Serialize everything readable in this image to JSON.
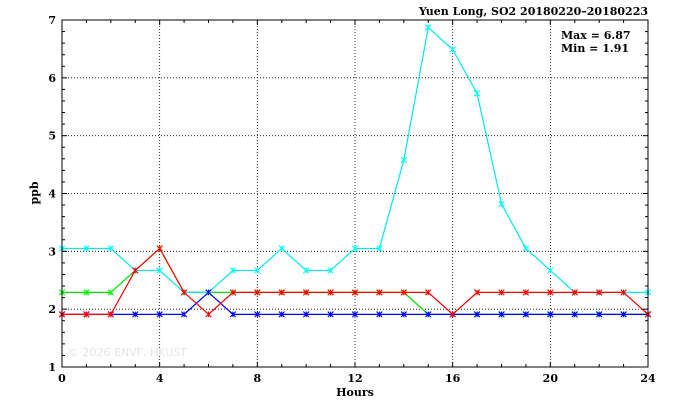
{
  "chart_data": {
    "type": "line",
    "title": "Yuen Long, SO2 20180220–20180223",
    "xlabel": "Hours",
    "ylabel": "ppb",
    "xlim": [
      0,
      24
    ],
    "ylim": [
      1,
      7
    ],
    "xticks": [
      0,
      4,
      8,
      12,
      16,
      20,
      24
    ],
    "yticks": [
      1,
      2,
      3,
      4,
      5,
      6,
      7
    ],
    "grid": true,
    "stats": {
      "max": "Max = 6.87",
      "min": "Min = 1.91"
    },
    "watermark": "© 2026  ENVF, HKUST",
    "x": [
      0,
      1,
      2,
      3,
      4,
      5,
      6,
      7,
      8,
      9,
      10,
      11,
      12,
      13,
      14,
      15,
      16,
      17,
      18,
      19,
      20,
      21,
      22,
      23,
      24
    ],
    "series": [
      {
        "color": "#00e000",
        "marker_color": "#00ff00",
        "values": [
          2.29,
          2.29,
          2.29,
          2.67,
          3.05,
          2.29,
          2.29,
          2.29,
          2.29,
          2.29,
          2.29,
          2.29,
          2.29,
          2.29,
          2.29,
          1.91,
          1.91,
          1.91,
          1.91,
          1.91,
          1.91,
          1.91,
          1.91,
          1.91,
          1.91
        ]
      },
      {
        "color": "#00e8e8",
        "marker_color": "#00ffff",
        "values": [
          3.05,
          3.05,
          3.05,
          2.67,
          2.67,
          2.29,
          2.29,
          2.67,
          2.67,
          3.05,
          2.67,
          2.67,
          3.05,
          3.05,
          4.58,
          6.87,
          6.49,
          5.73,
          3.82,
          3.05,
          2.67,
          2.29,
          2.29,
          2.29,
          2.29
        ]
      },
      {
        "color": "#0000ff",
        "marker_color": "#0000ff",
        "values": [
          1.91,
          1.91,
          1.91,
          1.91,
          1.91,
          1.91,
          2.29,
          1.91,
          1.91,
          1.91,
          1.91,
          1.91,
          1.91,
          1.91,
          1.91,
          1.91,
          1.91,
          1.91,
          1.91,
          1.91,
          1.91,
          1.91,
          1.91,
          1.91,
          1.91
        ]
      },
      {
        "color": "#ff0000",
        "marker_color": "#ff0000",
        "values": [
          1.91,
          1.91,
          1.91,
          2.67,
          3.05,
          2.29,
          1.91,
          2.29,
          2.29,
          2.29,
          2.29,
          2.29,
          2.29,
          2.29,
          2.29,
          2.29,
          1.91,
          2.29,
          2.29,
          2.29,
          2.29,
          2.29,
          2.29,
          2.29,
          1.91
        ]
      }
    ]
  }
}
